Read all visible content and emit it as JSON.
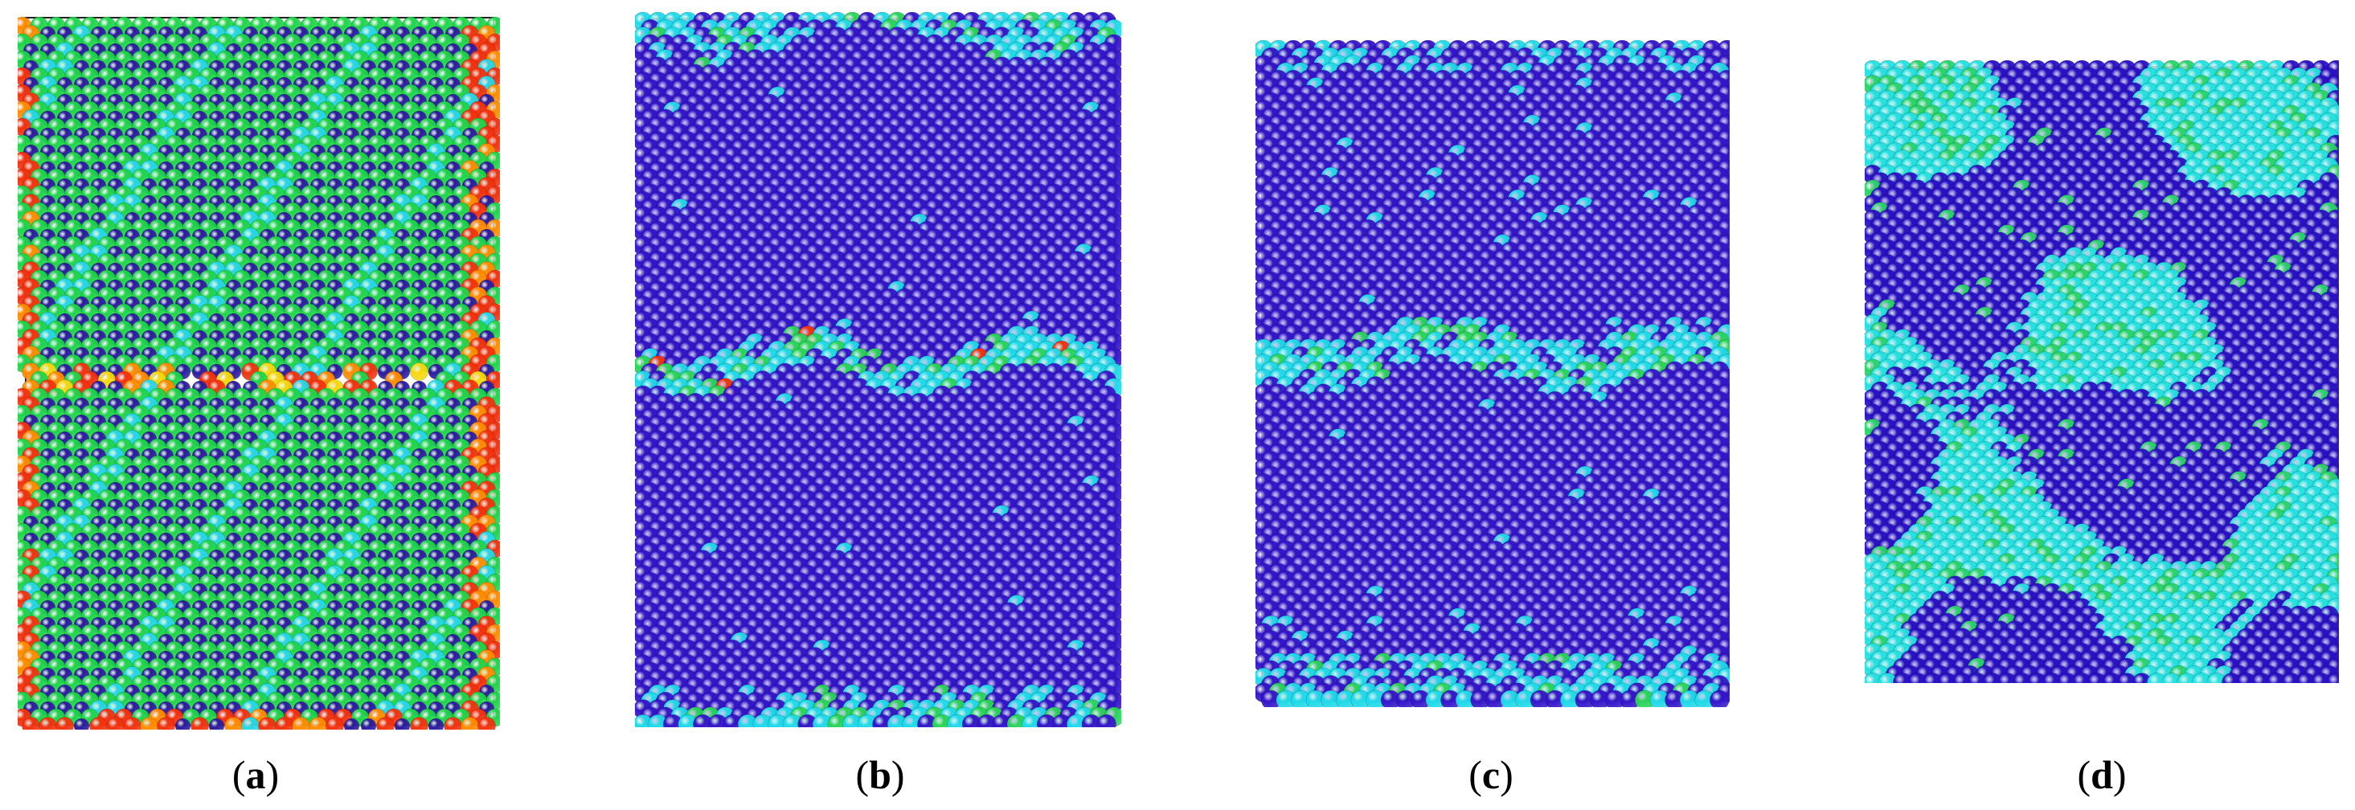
{
  "figure": {
    "panels": [
      {
        "id": "a",
        "caption_open": "(",
        "caption_letter": "a",
        "caption_close": ")",
        "palette": [
          "#2B1B9E",
          "#27D6E6",
          "#1FD44A",
          "#F2320E",
          "#FF8C00",
          "#F5D80E"
        ],
        "pattern": "interface-crystal"
      },
      {
        "id": "b",
        "caption_open": "(",
        "caption_letter": "b",
        "caption_close": ")",
        "palette": [
          "#3416C9",
          "#21D9E8",
          "#2BD35B",
          "#F2320E"
        ],
        "pattern": "two-grains-narrow-boundary"
      },
      {
        "id": "c",
        "caption_open": "(",
        "caption_letter": "c",
        "caption_close": ")",
        "palette": [
          "#3416C9",
          "#21D9E8",
          "#2BD35B"
        ],
        "pattern": "two-grains-boundary"
      },
      {
        "id": "d",
        "caption_open": "(",
        "caption_letter": "d",
        "caption_close": ")",
        "palette": [
          "#2A12C4",
          "#26E0E0",
          "#2BD36B"
        ],
        "pattern": "disordered"
      }
    ]
  }
}
